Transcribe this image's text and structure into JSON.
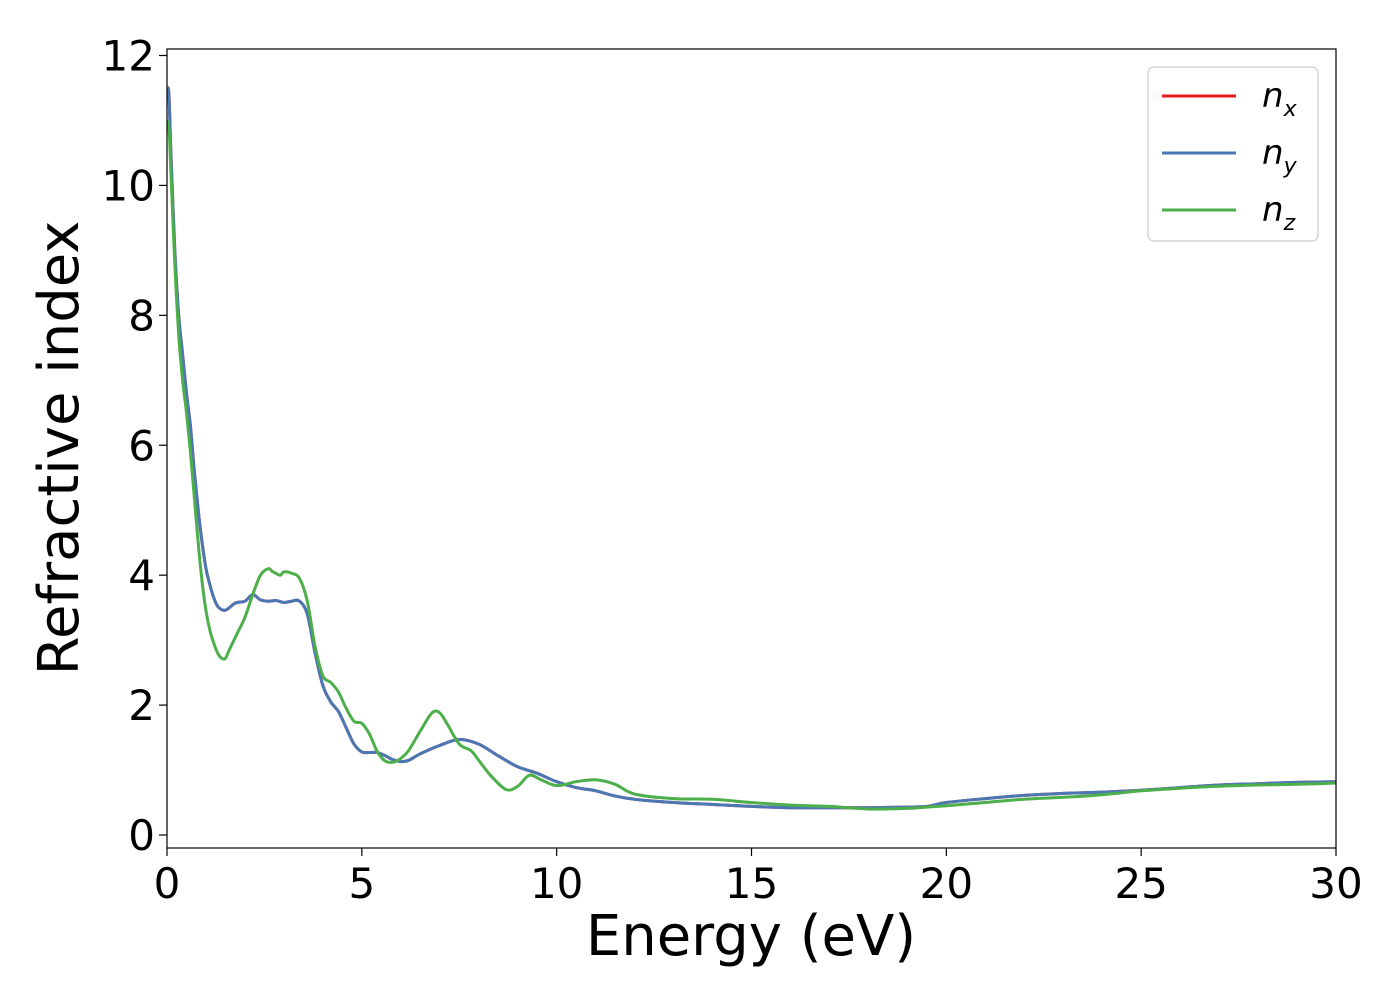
{
  "chart_data": {
    "type": "line",
    "xlabel": "Energy (eV)",
    "ylabel": "Refractive index",
    "xlim": [
      0,
      30
    ],
    "ylim": [
      -0.2,
      12.1
    ],
    "xticks": [
      0,
      5,
      10,
      15,
      20,
      25,
      30
    ],
    "yticks": [
      0,
      2,
      4,
      6,
      8,
      10,
      12
    ],
    "grid": false,
    "legend_position": "top-right",
    "series": [
      {
        "name": "n",
        "subscript": "x",
        "color": "#e41a1c",
        "x": [
          0,
          0.05,
          0.1,
          0.2,
          0.3,
          0.4,
          0.5,
          0.6,
          0.7,
          0.8,
          0.9,
          1.0,
          1.1,
          1.2,
          1.3,
          1.4,
          1.5,
          1.6,
          1.7,
          1.8,
          2.0,
          2.2,
          2.4,
          2.6,
          2.8,
          3.0,
          3.2,
          3.4,
          3.6,
          3.8,
          4.0,
          4.2,
          4.4,
          4.6,
          4.8,
          5.0,
          5.2,
          5.4,
          5.6,
          5.8,
          6.0,
          6.2,
          6.5,
          7.0,
          7.5,
          8.0,
          8.5,
          9.0,
          9.5,
          10.0,
          10.5,
          11.0,
          11.5,
          12.0,
          13.0,
          14.0,
          15.0,
          16.0,
          17.0,
          18.0,
          19.0,
          19.5,
          20.0,
          21.0,
          22.0,
          23.0,
          24.0,
          25.0,
          26.0,
          27.0,
          28.0,
          29.0,
          30.0
        ],
        "values": [
          11.5,
          11.4,
          10.5,
          9.0,
          8.0,
          7.4,
          6.8,
          6.3,
          5.6,
          5.0,
          4.5,
          4.1,
          3.85,
          3.65,
          3.52,
          3.47,
          3.46,
          3.5,
          3.55,
          3.58,
          3.6,
          3.7,
          3.62,
          3.6,
          3.61,
          3.58,
          3.6,
          3.6,
          3.4,
          2.8,
          2.3,
          2.05,
          1.9,
          1.65,
          1.4,
          1.28,
          1.27,
          1.27,
          1.22,
          1.16,
          1.13,
          1.15,
          1.25,
          1.38,
          1.47,
          1.4,
          1.22,
          1.05,
          0.95,
          0.82,
          0.73,
          0.68,
          0.6,
          0.55,
          0.5,
          0.47,
          0.44,
          0.42,
          0.42,
          0.42,
          0.43,
          0.44,
          0.5,
          0.56,
          0.61,
          0.64,
          0.66,
          0.69,
          0.73,
          0.77,
          0.79,
          0.81,
          0.82
        ]
      },
      {
        "name": "n",
        "subscript": "y",
        "color": "#4a78b5",
        "x": [
          0,
          0.05,
          0.1,
          0.2,
          0.3,
          0.4,
          0.5,
          0.6,
          0.7,
          0.8,
          0.9,
          1.0,
          1.1,
          1.2,
          1.3,
          1.4,
          1.5,
          1.6,
          1.7,
          1.8,
          2.0,
          2.2,
          2.4,
          2.6,
          2.8,
          3.0,
          3.2,
          3.4,
          3.6,
          3.8,
          4.0,
          4.2,
          4.4,
          4.6,
          4.8,
          5.0,
          5.2,
          5.4,
          5.6,
          5.8,
          6.0,
          6.2,
          6.5,
          7.0,
          7.5,
          8.0,
          8.5,
          9.0,
          9.5,
          10.0,
          10.5,
          11.0,
          11.5,
          12.0,
          13.0,
          14.0,
          15.0,
          16.0,
          17.0,
          18.0,
          19.0,
          19.5,
          20.0,
          21.0,
          22.0,
          23.0,
          24.0,
          25.0,
          26.0,
          27.0,
          28.0,
          29.0,
          30.0
        ],
        "values": [
          11.5,
          11.4,
          10.5,
          9.0,
          8.0,
          7.4,
          6.8,
          6.3,
          5.6,
          5.0,
          4.5,
          4.1,
          3.85,
          3.65,
          3.52,
          3.47,
          3.46,
          3.5,
          3.55,
          3.58,
          3.6,
          3.7,
          3.62,
          3.6,
          3.61,
          3.58,
          3.6,
          3.6,
          3.4,
          2.8,
          2.3,
          2.05,
          1.9,
          1.65,
          1.4,
          1.28,
          1.27,
          1.27,
          1.22,
          1.16,
          1.13,
          1.15,
          1.25,
          1.38,
          1.47,
          1.4,
          1.22,
          1.05,
          0.95,
          0.82,
          0.73,
          0.68,
          0.6,
          0.55,
          0.5,
          0.47,
          0.44,
          0.42,
          0.42,
          0.42,
          0.43,
          0.44,
          0.5,
          0.56,
          0.61,
          0.64,
          0.66,
          0.69,
          0.73,
          0.77,
          0.79,
          0.81,
          0.82
        ]
      },
      {
        "name": "n",
        "subscript": "z",
        "color": "#4daf4a",
        "x": [
          0,
          0.05,
          0.1,
          0.2,
          0.3,
          0.4,
          0.5,
          0.6,
          0.7,
          0.8,
          0.9,
          1.0,
          1.1,
          1.2,
          1.3,
          1.4,
          1.5,
          1.6,
          1.8,
          2.0,
          2.2,
          2.4,
          2.6,
          2.7,
          2.9,
          3.0,
          3.2,
          3.4,
          3.6,
          3.8,
          4.0,
          4.2,
          4.4,
          4.6,
          4.8,
          5.0,
          5.2,
          5.4,
          5.6,
          5.8,
          6.0,
          6.2,
          6.5,
          6.8,
          7.0,
          7.2,
          7.5,
          7.8,
          8.0,
          8.3,
          8.7,
          9.0,
          9.3,
          9.6,
          10.0,
          10.5,
          11.0,
          11.5,
          12.0,
          13.0,
          14.0,
          15.0,
          16.0,
          17.0,
          18.0,
          19.0,
          19.5,
          20.0,
          21.0,
          22.0,
          23.0,
          24.0,
          25.0,
          26.0,
          27.0,
          28.0,
          29.0,
          30.0
        ],
        "values": [
          11.0,
          10.9,
          10.2,
          8.8,
          7.7,
          7.0,
          6.5,
          5.9,
          5.2,
          4.5,
          3.9,
          3.45,
          3.15,
          2.95,
          2.8,
          2.72,
          2.72,
          2.85,
          3.1,
          3.35,
          3.7,
          4.0,
          4.1,
          4.06,
          4.0,
          4.05,
          4.03,
          3.95,
          3.6,
          2.9,
          2.45,
          2.35,
          2.2,
          1.95,
          1.75,
          1.72,
          1.55,
          1.28,
          1.14,
          1.12,
          1.18,
          1.3,
          1.6,
          1.88,
          1.88,
          1.7,
          1.4,
          1.3,
          1.15,
          0.92,
          0.7,
          0.75,
          0.92,
          0.85,
          0.76,
          0.82,
          0.85,
          0.78,
          0.63,
          0.56,
          0.55,
          0.5,
          0.46,
          0.44,
          0.4,
          0.41,
          0.43,
          0.45,
          0.5,
          0.55,
          0.58,
          0.62,
          0.68,
          0.72,
          0.75,
          0.77,
          0.78,
          0.8
        ]
      }
    ]
  }
}
